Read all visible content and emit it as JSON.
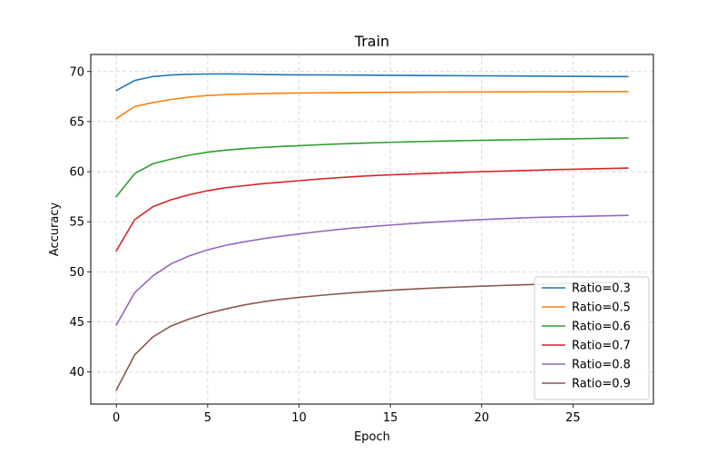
{
  "chart_data": {
    "type": "line",
    "title": "Train",
    "xlabel": "Epoch",
    "ylabel": "Accuracy",
    "xlim": [
      -1.4,
      29.4
    ],
    "ylim": [
      36.8,
      71.7
    ],
    "xticks": [
      0,
      5,
      10,
      15,
      20,
      25
    ],
    "yticks": [
      40,
      45,
      50,
      55,
      60,
      65,
      70
    ],
    "grid": true,
    "legend_position": "lower-right",
    "x": [
      0,
      1,
      2,
      3,
      4,
      5,
      6,
      7,
      8,
      9,
      10,
      11,
      12,
      13,
      14,
      15,
      16,
      17,
      18,
      19,
      20,
      21,
      22,
      23,
      24,
      25,
      26,
      27,
      28
    ],
    "series": [
      {
        "name": "Ratio=0.3",
        "color": "#1f77b4",
        "values": [
          68.1,
          69.1,
          69.5,
          69.65,
          69.72,
          69.75,
          69.76,
          69.74,
          69.7,
          69.68,
          69.67,
          69.66,
          69.65,
          69.64,
          69.63,
          69.62,
          69.61,
          69.6,
          69.59,
          69.58,
          69.57,
          69.56,
          69.55,
          69.54,
          69.53,
          69.52,
          69.51,
          69.5,
          69.5
        ]
      },
      {
        "name": "Ratio=0.5",
        "color": "#ff7f0e",
        "values": [
          65.3,
          66.5,
          66.9,
          67.2,
          67.45,
          67.6,
          67.7,
          67.75,
          67.8,
          67.83,
          67.85,
          67.87,
          67.89,
          67.9,
          67.91,
          67.92,
          67.93,
          67.94,
          67.95,
          67.96,
          67.96,
          67.97,
          67.97,
          67.98,
          67.98,
          67.98,
          67.99,
          67.99,
          68.0
        ]
      },
      {
        "name": "Ratio=0.6",
        "color": "#2ca02c",
        "values": [
          57.5,
          59.8,
          60.8,
          61.25,
          61.65,
          61.95,
          62.15,
          62.3,
          62.42,
          62.52,
          62.6,
          62.68,
          62.75,
          62.82,
          62.88,
          62.93,
          62.98,
          63.02,
          63.06,
          63.1,
          63.13,
          63.16,
          63.19,
          63.22,
          63.25,
          63.28,
          63.31,
          63.34,
          63.37
        ]
      },
      {
        "name": "Ratio=0.7",
        "color": "#d62728",
        "values": [
          52.1,
          55.2,
          56.5,
          57.2,
          57.7,
          58.1,
          58.4,
          58.6,
          58.8,
          58.95,
          59.1,
          59.25,
          59.38,
          59.5,
          59.6,
          59.68,
          59.75,
          59.82,
          59.88,
          59.94,
          60.0,
          60.05,
          60.1,
          60.15,
          60.2,
          60.24,
          60.28,
          60.32,
          60.36
        ]
      },
      {
        "name": "Ratio=0.8",
        "color": "#9467bd",
        "values": [
          44.7,
          47.9,
          49.6,
          50.8,
          51.6,
          52.2,
          52.65,
          53.0,
          53.3,
          53.55,
          53.78,
          54.0,
          54.2,
          54.38,
          54.53,
          54.67,
          54.8,
          54.92,
          55.03,
          55.13,
          55.22,
          55.3,
          55.37,
          55.43,
          55.48,
          55.52,
          55.56,
          55.6,
          55.64
        ]
      },
      {
        "name": "Ratio=0.9",
        "color": "#8c564b",
        "values": [
          38.2,
          41.7,
          43.5,
          44.6,
          45.3,
          45.85,
          46.3,
          46.7,
          47.0,
          47.25,
          47.45,
          47.62,
          47.78,
          47.92,
          48.05,
          48.16,
          48.26,
          48.35,
          48.43,
          48.5,
          48.57,
          48.63,
          48.69,
          48.75,
          48.8,
          48.85,
          48.9,
          48.94,
          48.98
        ]
      }
    ]
  }
}
